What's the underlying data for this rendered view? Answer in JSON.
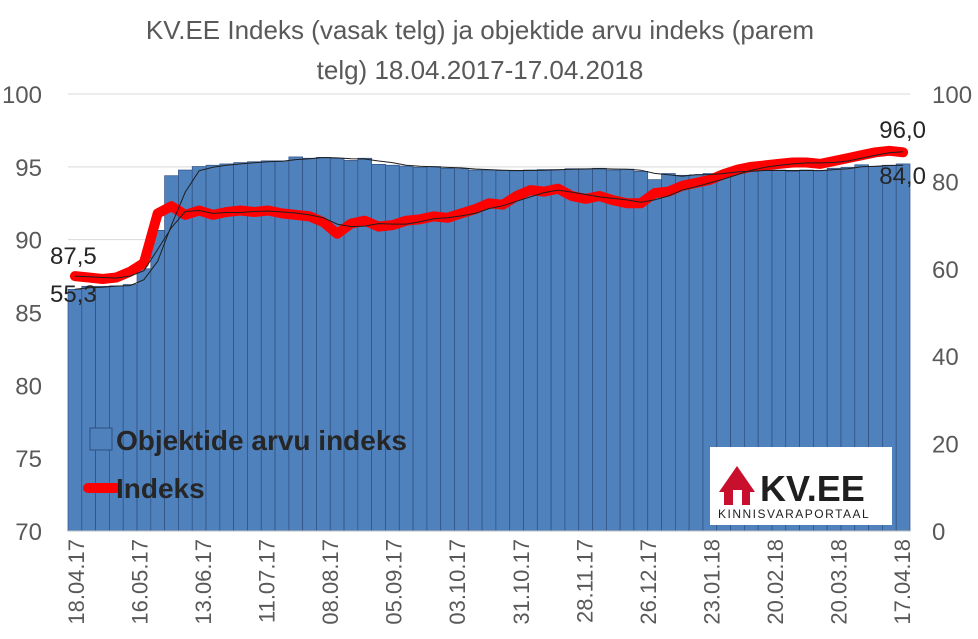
{
  "chart_data": {
    "type": "bar",
    "title_line1": "KV.EE Indeks (vasak telg) ja objektide arvu indeks (parem",
    "title_line2": "telg) 18.04.2017-17.04.2018",
    "x_tick_labels": [
      "18.04.17",
      "16.05.17",
      "13.06.17",
      "11.07.17",
      "08.08.17",
      "05.09.17",
      "03.10.17",
      "31.10.17",
      "28.11.17",
      "26.12.17",
      "23.01.18",
      "20.02.18",
      "20.03.18",
      "17.04.18"
    ],
    "left_axis": {
      "min": 70,
      "max": 100,
      "ticks": [
        "70",
        "75",
        "80",
        "85",
        "90",
        "95",
        "100"
      ]
    },
    "right_axis": {
      "min": 0,
      "max": 100,
      "ticks": [
        "0",
        "20",
        "40",
        "60",
        "80",
        "100"
      ]
    },
    "grid": true,
    "series": [
      {
        "name": "Objektide arvu indeks",
        "type": "bar",
        "axis": "right",
        "color": "#4f81bd",
        "values": [
          55.3,
          56.0,
          56.0,
          56.1,
          56.4,
          60.0,
          68.8,
          81.3,
          82.6,
          83.4,
          83.7,
          84.0,
          84.3,
          84.5,
          84.7,
          84.7,
          85.6,
          85.3,
          85.5,
          85.3,
          84.8,
          85.3,
          83.9,
          83.7,
          83.5,
          83.2,
          83.4,
          83.0,
          82.9,
          82.6,
          82.6,
          82.5,
          82.4,
          82.6,
          82.7,
          82.7,
          82.9,
          82.9,
          83.0,
          82.6,
          82.8,
          82.3,
          80.4,
          81.8,
          81.4,
          81.5,
          81.8,
          82.1,
          82.6,
          82.3,
          82.6,
          82.6,
          82.3,
          82.6,
          82.5,
          83.0,
          83.2,
          83.8,
          83.4,
          83.7,
          84.0
        ]
      },
      {
        "name": "Indeks",
        "type": "line",
        "axis": "left",
        "color": "#ff0000",
        "values": [
          87.5,
          87.4,
          87.3,
          87.4,
          87.8,
          88.4,
          91.8,
          92.3,
          91.7,
          92.0,
          91.7,
          91.9,
          92.0,
          91.9,
          92.0,
          91.8,
          91.7,
          91.6,
          91.2,
          90.4,
          91.1,
          91.3,
          90.9,
          91.0,
          91.3,
          91.4,
          91.6,
          91.5,
          91.8,
          92.1,
          92.5,
          92.4,
          93.0,
          93.4,
          93.3,
          93.5,
          93.0,
          92.8,
          93.0,
          92.7,
          92.5,
          92.5,
          93.2,
          93.3,
          93.7,
          93.9,
          94.1,
          94.5,
          94.8,
          95.0,
          95.1,
          95.2,
          95.3,
          95.3,
          95.2,
          95.4,
          95.6,
          95.8,
          96.0,
          96.1,
          96.0
        ]
      }
    ],
    "data_labels": {
      "first_line": "87,5",
      "last_line": "96,0",
      "first_bar": "55,3",
      "last_bar": "84,0"
    },
    "legend": {
      "position": "bottom-left",
      "bar_label": "Objektide arvu indeks",
      "line_label": "Indeks"
    }
  },
  "logo": {
    "text": "KV.EE",
    "subtitle": "KINNISVARAPORTAAL",
    "brand_color": "#c8102e"
  }
}
